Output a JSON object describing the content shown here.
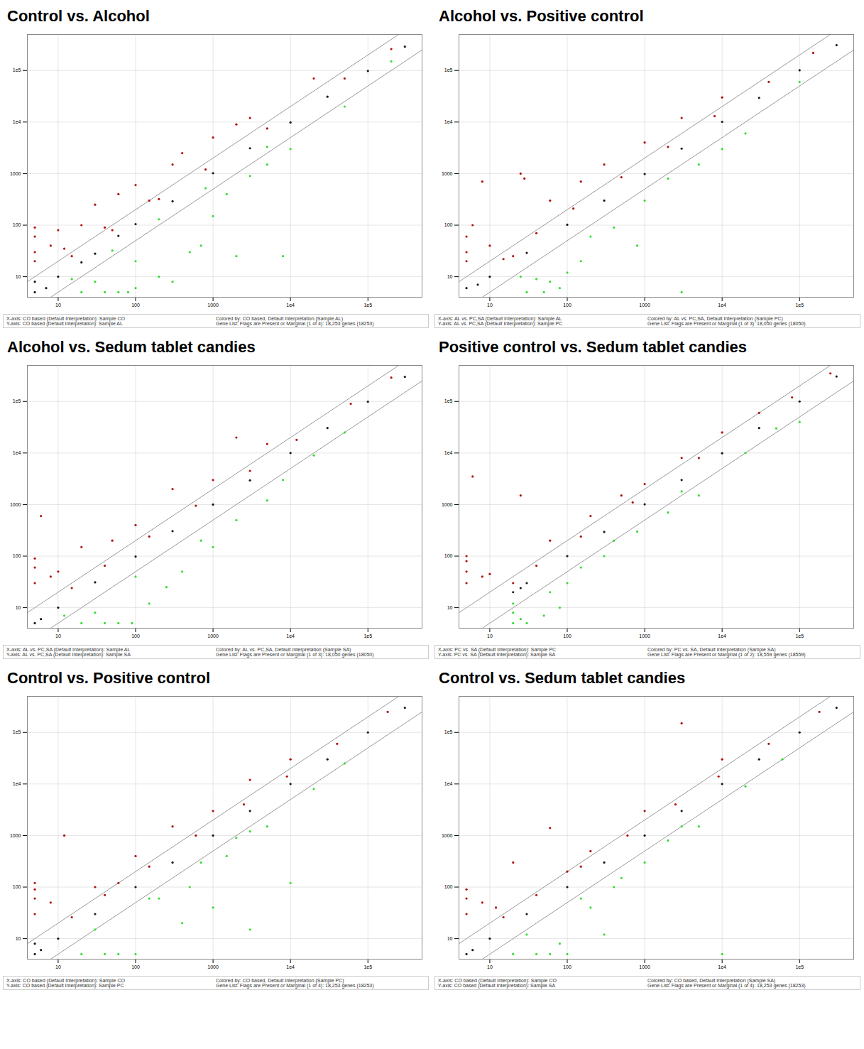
{
  "chart_data": [
    {
      "type": "scatter",
      "title": "Control vs. Alcohol",
      "log": true,
      "grid": true,
      "xlim": [
        4,
        500000
      ],
      "ylim": [
        4,
        500000
      ],
      "xticks": [
        10,
        100,
        1000,
        {
          "value": 10000,
          "label": "1e4"
        },
        {
          "value": 100000,
          "label": "1e5"
        }
      ],
      "yticks": [
        10,
        100,
        1000,
        {
          "value": 10000,
          "label": "1e4"
        },
        {
          "value": 100000,
          "label": "1e5"
        }
      ],
      "fold_lines": [
        2,
        0.5
      ],
      "annotations": [
        "X-axis: CO based (Default Interpretation): Sample CO",
        "Colored by: CO based, Default Interpretation (Sample AL)",
        "Y-axis: CO based (Default Interpretation): Sample AL",
        "Gene List: Flags are Present or Marginal (1 of 4): 18,253 genes (18253)"
      ],
      "series": [
        {
          "color": "#b01010",
          "x": [
            5,
            5,
            5,
            5,
            8,
            10,
            20,
            30,
            60,
            100,
            300,
            1000,
            2000,
            3000,
            20000,
            15,
            50,
            200,
            800,
            5000,
            50000,
            200000,
            12,
            40,
            150,
            400
          ],
          "y": [
            30,
            60,
            90,
            20,
            40,
            80,
            100,
            250,
            400,
            600,
            1500,
            5000,
            9000,
            12000,
            70000,
            25,
            80,
            320,
            1200,
            7500,
            70000,
            260000,
            35,
            90,
            300,
            2500
          ]
        },
        {
          "color": "#1a1a1a",
          "x": [
            5,
            5,
            10,
            30,
            100,
            300,
            1000,
            3000,
            10000,
            30000,
            100000,
            300000,
            7,
            20,
            60
          ],
          "y": [
            5,
            8,
            10,
            28,
            105,
            290,
            1020,
            3100,
            9800,
            31000,
            98000,
            290000,
            6,
            19,
            62
          ]
        },
        {
          "color": "#33dd33",
          "x": [
            20,
            40,
            60,
            100,
            200,
            500,
            1000,
            2000,
            3000,
            5000,
            10000,
            300,
            700,
            1500,
            50000,
            100,
            30,
            15,
            50,
            200,
            800,
            5000,
            200000,
            8000,
            80
          ],
          "y": [
            5,
            5,
            5,
            6,
            10,
            30,
            150,
            25,
            900,
            1500,
            3000,
            8,
            40,
            400,
            20000,
            20,
            8,
            9,
            32,
            130,
            520,
            3300,
            150000,
            25,
            5
          ]
        }
      ]
    },
    {
      "type": "scatter",
      "title": "Alcohol vs. Positive control",
      "log": true,
      "grid": true,
      "xlim": [
        4,
        500000
      ],
      "ylim": [
        4,
        500000
      ],
      "xticks": [
        10,
        100,
        1000,
        {
          "value": 10000,
          "label": "1e4"
        },
        {
          "value": 100000,
          "label": "1e5"
        }
      ],
      "yticks": [
        10,
        100,
        1000,
        {
          "value": 10000,
          "label": "1e4"
        },
        {
          "value": 100000,
          "label": "1e5"
        }
      ],
      "fold_lines": [
        2,
        0.5
      ],
      "annotations": [
        "X-axis: AL vs. PC,SA (Default Interpretation): Sample AL",
        "Colored by: AL vs. PC,SA, Default Interpretation (Sample PC)",
        "Y-axis: AL vs. PC,SA (Default Interpretation): Sample PC",
        "Gene List: Flags are Present or Marginal (1 of 3): 18,050 genes (18050)"
      ],
      "series": [
        {
          "color": "#b01010",
          "x": [
            5,
            5,
            5,
            8,
            6,
            25,
            28,
            60,
            150,
            300,
            1000,
            3000,
            10000,
            15,
            40,
            120,
            500,
            2000,
            8000,
            40000,
            150000,
            10,
            20
          ],
          "y": [
            30,
            20,
            60,
            700,
            100,
            1000,
            800,
            300,
            700,
            1500,
            4000,
            12000,
            30000,
            22,
            70,
            210,
            850,
            3300,
            13000,
            60000,
            220000,
            40,
            25
          ]
        },
        {
          "color": "#1a1a1a",
          "x": [
            5,
            7,
            10,
            30,
            100,
            300,
            1000,
            3000,
            10000,
            30000,
            100000,
            300000
          ],
          "y": [
            6,
            7,
            10,
            29,
            102,
            300,
            980,
            3050,
            10100,
            29500,
            101000,
            310000
          ]
        },
        {
          "color": "#33dd33",
          "x": [
            30,
            50,
            80,
            100,
            40,
            150,
            400,
            1000,
            2000,
            5000,
            20000,
            3000,
            200,
            60,
            800,
            10000,
            100000,
            25
          ],
          "y": [
            5,
            5,
            6,
            12,
            9,
            20,
            90,
            300,
            800,
            1500,
            6000,
            5,
            60,
            8,
            40,
            3000,
            60000,
            10
          ]
        }
      ]
    },
    {
      "type": "scatter",
      "title": "Alcohol vs. Sedum tablet candies",
      "log": true,
      "grid": true,
      "xlim": [
        4,
        500000
      ],
      "ylim": [
        4,
        500000
      ],
      "xticks": [
        10,
        100,
        1000,
        {
          "value": 10000,
          "label": "1e4"
        },
        {
          "value": 100000,
          "label": "1e5"
        }
      ],
      "yticks": [
        10,
        100,
        1000,
        {
          "value": 10000,
          "label": "1e4"
        },
        {
          "value": 100000,
          "label": "1e5"
        }
      ],
      "fold_lines": [
        2,
        0.5
      ],
      "annotations": [
        "X-axis: AL vs. PC,SA (Default Interpretation): Sample AL",
        "Colored by: AL vs. PC,SA, Default Interpretation (Sample SA)",
        "Y-axis: AL vs. PC,SA (Default Interpretation): Sample SA",
        "Gene List: Flags are Present or Marginal (1 of 3): 18,050 genes (18050)"
      ],
      "series": [
        {
          "color": "#b01010",
          "x": [
            5,
            5,
            5,
            6,
            8,
            20,
            50,
            100,
            300,
            1000,
            2000,
            5000,
            15,
            40,
            150,
            600,
            3000,
            12000,
            60000,
            200000,
            10
          ],
          "y": [
            30,
            60,
            90,
            600,
            40,
            150,
            200,
            400,
            2000,
            3000,
            20000,
            15000,
            24,
            65,
            240,
            950,
            4500,
            18000,
            90000,
            290000,
            50
          ]
        },
        {
          "color": "#1a1a1a",
          "x": [
            5,
            6,
            10,
            30,
            100,
            300,
            1000,
            3000,
            10000,
            30000,
            100000,
            300000
          ],
          "y": [
            5,
            6,
            10,
            31,
            98,
            305,
            1000,
            2950,
            10000,
            30500,
            99000,
            300000
          ]
        },
        {
          "color": "#33dd33",
          "x": [
            20,
            40,
            60,
            90,
            30,
            150,
            400,
            1000,
            2000,
            5000,
            8000,
            20000,
            100,
            250,
            50000,
            700,
            12
          ],
          "y": [
            5,
            5,
            5,
            5,
            8,
            12,
            50,
            150,
            500,
            1200,
            3000,
            9000,
            40,
            25,
            25000,
            200,
            7
          ]
        }
      ]
    },
    {
      "type": "scatter",
      "title": "Positive control vs. Sedum tablet candies",
      "log": true,
      "grid": true,
      "xlim": [
        4,
        500000
      ],
      "ylim": [
        4,
        500000
      ],
      "xticks": [
        10,
        100,
        1000,
        {
          "value": 10000,
          "label": "1e4"
        },
        {
          "value": 100000,
          "label": "1e5"
        }
      ],
      "yticks": [
        10,
        100,
        1000,
        {
          "value": 10000,
          "label": "1e4"
        },
        {
          "value": 100000,
          "label": "1e5"
        }
      ],
      "fold_lines": [
        2,
        0.5
      ],
      "annotations": [
        "X-axis: PC vs. SA (Default Interpretation): Sample PC",
        "Colored by: PC vs. SA, Default Interpretation (Sample SA)",
        "Y-axis: PC vs. SA (Default Interpretation): Sample SA",
        "Gene List: Flags are Present or Marginal (1 of 2): 18,559 genes (18559)"
      ],
      "series": [
        {
          "color": "#b01010",
          "x": [
            5,
            5,
            5,
            5,
            6,
            8,
            10,
            20,
            25,
            60,
            200,
            500,
            1000,
            3000,
            10000,
            30000,
            40,
            150,
            700,
            5000,
            80000,
            250000
          ],
          "y": [
            30,
            50,
            80,
            100,
            3500,
            40,
            45,
            30,
            1500,
            200,
            600,
            1500,
            2500,
            8000,
            25000,
            60000,
            65,
            240,
            1100,
            8000,
            120000,
            350000
          ]
        },
        {
          "color": "#1a1a1a",
          "x": [
            20,
            25,
            30,
            100,
            300,
            1000,
            3000,
            10000,
            30000,
            100000,
            300000
          ],
          "y": [
            20,
            24,
            30,
            100,
            295,
            1010,
            3000,
            9900,
            30500,
            100000,
            305000
          ]
        },
        {
          "color": "#33dd33",
          "x": [
            20,
            20,
            20,
            25,
            30,
            50,
            80,
            100,
            150,
            300,
            800,
            2000,
            5000,
            20000,
            100000,
            60,
            400,
            3000,
            50000
          ],
          "y": [
            5,
            8,
            12,
            6,
            5,
            7,
            10,
            30,
            60,
            100,
            300,
            700,
            1500,
            10000,
            40000,
            20,
            200,
            1800,
            30000
          ]
        }
      ]
    },
    {
      "type": "scatter",
      "title": "Control vs. Positive control",
      "log": true,
      "grid": true,
      "xlim": [
        4,
        500000
      ],
      "ylim": [
        4,
        500000
      ],
      "xticks": [
        10,
        100,
        1000,
        {
          "value": 10000,
          "label": "1e4"
        },
        {
          "value": 100000,
          "label": "1e5"
        }
      ],
      "yticks": [
        10,
        100,
        1000,
        {
          "value": 10000,
          "label": "1e4"
        },
        {
          "value": 100000,
          "label": "1e5"
        }
      ],
      "fold_lines": [
        2,
        0.5
      ],
      "annotations": [
        "X-axis: CO based (Default Interpretation): Sample CO",
        "Colored by: CO based, Default Interpretation (Sample PC)",
        "Y-axis: CO based (Default Interpretation): Sample PC",
        "Gene List: Flags are Present or Marginal (1 of 4): 18,253 genes (18253)"
      ],
      "series": [
        {
          "color": "#b01010",
          "x": [
            5,
            5,
            5,
            5,
            8,
            12,
            30,
            100,
            300,
            1000,
            3000,
            10000,
            15,
            40,
            150,
            600,
            2500,
            9000,
            40000,
            180000,
            60
          ],
          "y": [
            30,
            60,
            90,
            120,
            50,
            1000,
            100,
            400,
            1500,
            3000,
            12000,
            30000,
            26,
            70,
            250,
            1000,
            4000,
            14000,
            60000,
            250000,
            120
          ]
        },
        {
          "color": "#1a1a1a",
          "x": [
            5,
            5,
            6,
            10,
            30,
            100,
            300,
            1000,
            3000,
            10000,
            30000,
            100000,
            300000
          ],
          "y": [
            5,
            8,
            6,
            10,
            30,
            100,
            300,
            1000,
            3000,
            10000,
            30000,
            100000,
            300000
          ]
        },
        {
          "color": "#33dd33",
          "x": [
            20,
            40,
            60,
            100,
            30,
            200,
            500,
            1000,
            1500,
            3000,
            5000,
            10000,
            20000,
            400,
            700,
            3000,
            50000,
            150,
            2000
          ],
          "y": [
            5,
            5,
            5,
            5,
            15,
            60,
            100,
            40,
            400,
            15,
            1500,
            120,
            8000,
            20,
            300,
            1200,
            25000,
            60,
            900
          ]
        }
      ]
    },
    {
      "type": "scatter",
      "title": "Control vs. Sedum tablet candies",
      "log": true,
      "grid": true,
      "xlim": [
        4,
        500000
      ],
      "ylim": [
        4,
        500000
      ],
      "xticks": [
        10,
        100,
        1000,
        {
          "value": 10000,
          "label": "1e4"
        },
        {
          "value": 100000,
          "label": "1e5"
        }
      ],
      "yticks": [
        10,
        100,
        1000,
        {
          "value": 10000,
          "label": "1e4"
        },
        {
          "value": 100000,
          "label": "1e5"
        }
      ],
      "fold_lines": [
        2,
        0.5
      ],
      "annotations": [
        "X-axis: CO based (Default Interpretation): Sample CO",
        "Colored by: CO based, Default Interpretation (Sample SA)",
        "Y-axis: CO based (Default Interpretation): Sample SA",
        "Gene List: Flags are Present or Marginal (1 of 4): 18,253 genes (18253)"
      ],
      "series": [
        {
          "color": "#b01010",
          "x": [
            5,
            5,
            5,
            8,
            20,
            60,
            200,
            1000,
            3000,
            10000,
            15,
            40,
            150,
            600,
            2500,
            9000,
            40000,
            180000,
            100,
            12
          ],
          "y": [
            30,
            60,
            90,
            50,
            300,
            1400,
            500,
            3000,
            150000,
            30000,
            26,
            70,
            250,
            1000,
            4000,
            14000,
            60000,
            250000,
            200,
            40
          ]
        },
        {
          "color": "#1a1a1a",
          "x": [
            5,
            6,
            10,
            30,
            100,
            300,
            1000,
            3000,
            10000,
            30000,
            100000,
            300000
          ],
          "y": [
            5,
            6,
            10,
            30,
            100,
            300,
            1000,
            3000,
            10000,
            30000,
            100000,
            300000
          ]
        },
        {
          "color": "#33dd33",
          "x": [
            20,
            40,
            60,
            100,
            30,
            200,
            500,
            1000,
            2000,
            5000,
            10000,
            20000,
            60000,
            400,
            3000,
            300,
            150,
            80
          ],
          "y": [
            5,
            5,
            5,
            5,
            12,
            40,
            150,
            300,
            800,
            1500,
            5,
            9000,
            30000,
            100,
            1500,
            12,
            60,
            8
          ]
        }
      ]
    }
  ]
}
